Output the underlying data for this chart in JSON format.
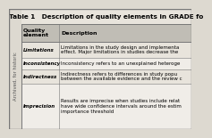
{
  "title": "Table 1   Description of quality elements in GRADE fo",
  "watermark": "Archived, for historic",
  "header_col1": "Quality\nelement",
  "header_col2": "Description",
  "rows": [
    [
      "Limitations",
      "Limitations in the study design and implementa\neffect. Major limitations in studies decrease the"
    ],
    [
      "Inconsistency",
      "Inconsistency refers to an unexplained heteroge"
    ],
    [
      "Indirectness",
      "Indirectness refers to differences in study popu\nbetween the available evidence and the review c"
    ],
    [
      "Imprecision",
      "Results are imprecise when studies include relat\nhave wide confidence intervals around the estim\nimportance threshold"
    ]
  ],
  "bg_color": "#ddd9d0",
  "table_bg": "#e8e4dc",
  "header_bg": "#c0bdb5",
  "row_bg_even": "#e8e4dc",
  "row_bg_odd": "#f0ede8",
  "border_color": "#777777",
  "watermark_bg": "#ddd9d0",
  "title_font_size": 5.2,
  "body_font_size": 4.0,
  "header_font_size": 4.5,
  "watermark_font_size": 3.8
}
